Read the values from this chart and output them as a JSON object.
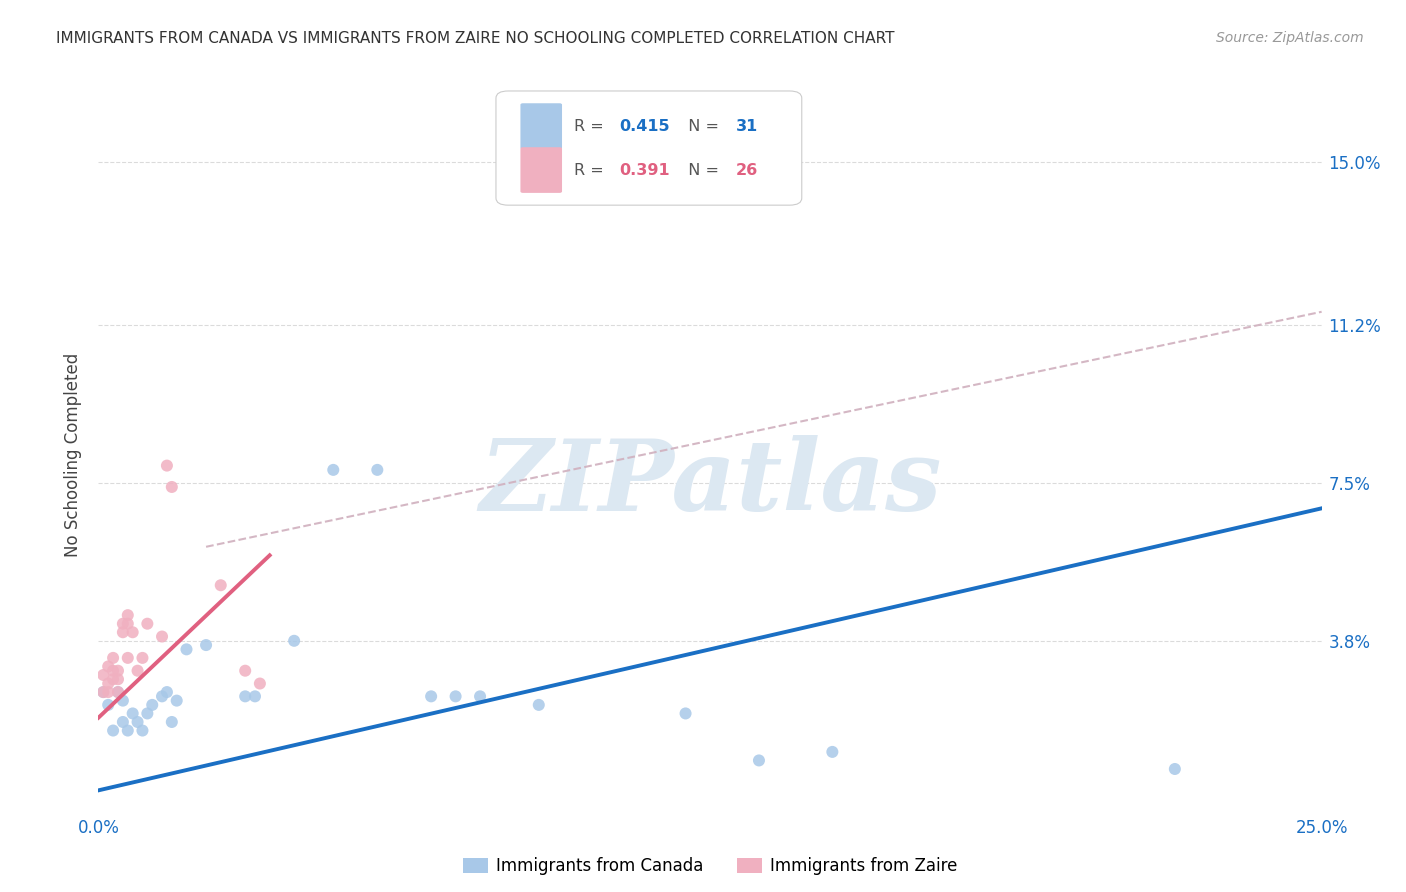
{
  "title": "IMMIGRANTS FROM CANADA VS IMMIGRANTS FROM ZAIRE NO SCHOOLING COMPLETED CORRELATION CHART",
  "source": "Source: ZipAtlas.com",
  "ylabel": "No Schooling Completed",
  "xlim": [
    0.0,
    0.25
  ],
  "ylim": [
    -0.002,
    0.165
  ],
  "ytick_labels": [
    "3.8%",
    "7.5%",
    "11.2%",
    "15.0%"
  ],
  "ytick_positions": [
    0.038,
    0.075,
    0.112,
    0.15
  ],
  "canada_dots": [
    [
      0.001,
      0.026
    ],
    [
      0.002,
      0.023
    ],
    [
      0.003,
      0.017
    ],
    [
      0.004,
      0.026
    ],
    [
      0.005,
      0.019
    ],
    [
      0.005,
      0.024
    ],
    [
      0.006,
      0.017
    ],
    [
      0.007,
      0.021
    ],
    [
      0.008,
      0.019
    ],
    [
      0.009,
      0.017
    ],
    [
      0.01,
      0.021
    ],
    [
      0.011,
      0.023
    ],
    [
      0.013,
      0.025
    ],
    [
      0.014,
      0.026
    ],
    [
      0.015,
      0.019
    ],
    [
      0.016,
      0.024
    ],
    [
      0.018,
      0.036
    ],
    [
      0.022,
      0.037
    ],
    [
      0.03,
      0.025
    ],
    [
      0.032,
      0.025
    ],
    [
      0.04,
      0.038
    ],
    [
      0.048,
      0.078
    ],
    [
      0.057,
      0.078
    ],
    [
      0.068,
      0.025
    ],
    [
      0.073,
      0.025
    ],
    [
      0.078,
      0.025
    ],
    [
      0.09,
      0.023
    ],
    [
      0.12,
      0.021
    ],
    [
      0.135,
      0.01
    ],
    [
      0.15,
      0.012
    ],
    [
      0.22,
      0.008
    ]
  ],
  "zaire_dots": [
    [
      0.001,
      0.026
    ],
    [
      0.001,
      0.03
    ],
    [
      0.002,
      0.026
    ],
    [
      0.002,
      0.032
    ],
    [
      0.002,
      0.028
    ],
    [
      0.003,
      0.031
    ],
    [
      0.003,
      0.034
    ],
    [
      0.003,
      0.029
    ],
    [
      0.004,
      0.031
    ],
    [
      0.004,
      0.026
    ],
    [
      0.004,
      0.029
    ],
    [
      0.005,
      0.042
    ],
    [
      0.005,
      0.04
    ],
    [
      0.006,
      0.044
    ],
    [
      0.006,
      0.042
    ],
    [
      0.006,
      0.034
    ],
    [
      0.007,
      0.04
    ],
    [
      0.008,
      0.031
    ],
    [
      0.009,
      0.034
    ],
    [
      0.01,
      0.042
    ],
    [
      0.013,
      0.039
    ],
    [
      0.014,
      0.079
    ],
    [
      0.015,
      0.074
    ],
    [
      0.025,
      0.051
    ],
    [
      0.03,
      0.031
    ],
    [
      0.033,
      0.028
    ]
  ],
  "canada_line_x": [
    0.0,
    0.25
  ],
  "canada_line_y": [
    0.003,
    0.069
  ],
  "zaire_line_x": [
    0.0,
    0.035
  ],
  "zaire_line_y": [
    0.02,
    0.058
  ],
  "dashed_line_x": [
    0.022,
    0.25
  ],
  "dashed_line_y": [
    0.06,
    0.115
  ],
  "canada_color": "#a8c8e8",
  "zaire_color": "#f0b0c0",
  "canada_line_color": "#1a6fc4",
  "zaire_line_color": "#e06080",
  "dashed_line_color": "#d0b0be",
  "dot_size": 75,
  "background_color": "#ffffff",
  "grid_color": "#d8d8d8",
  "watermark_color": "#dce8f2",
  "r_canada": "0.415",
  "n_canada": "31",
  "r_zaire": "0.391",
  "n_zaire": "26"
}
